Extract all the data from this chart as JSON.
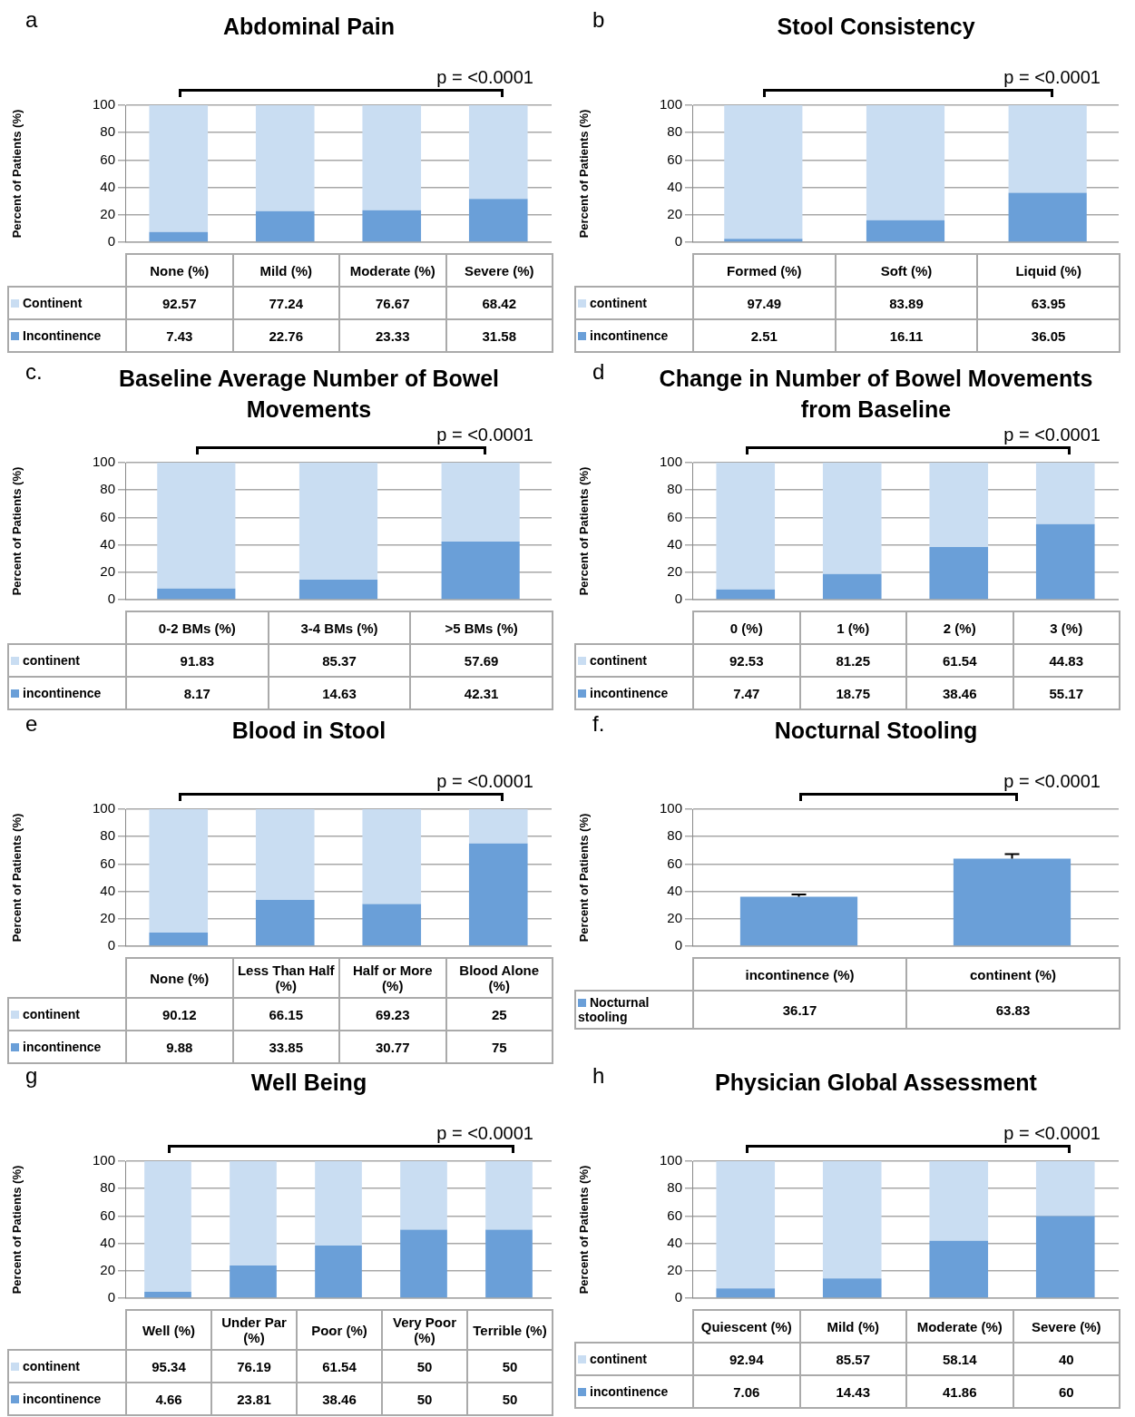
{
  "chart_data": [
    {
      "type": "bar",
      "stacked": true,
      "title": "Abdominal Pain",
      "ylabel": "Percent of Patients (%)",
      "annotations": [
        "a",
        "p = <0.0001"
      ],
      "categories": [
        "None (%)",
        "Mild (%)",
        "Moderate (%)",
        "Severe (%)"
      ],
      "series": [
        {
          "name": "Incontinence",
          "color": "#6a9fd8",
          "values": [
            7.43,
            22.76,
            23.33,
            31.58
          ]
        },
        {
          "name": "Continent",
          "color": "#c9ddf2",
          "values": [
            92.57,
            77.24,
            76.67,
            68.42
          ]
        }
      ],
      "ylim": [
        0,
        100
      ],
      "yticks": [
        0,
        20,
        40,
        60,
        80,
        100
      ],
      "grid": "y",
      "legend": "bottom",
      "tick_labels": "y",
      "data_labels": true
    },
    {
      "type": "bar",
      "stacked": true,
      "title": "Stool Consistency",
      "ylabel": "Percent of Patients (%)",
      "annotations": [
        "b",
        "p = <0.0001"
      ],
      "categories": [
        "Formed (%)",
        "Soft (%)",
        "Liquid (%)"
      ],
      "series": [
        {
          "name": "incontinence",
          "color": "#6a9fd8",
          "values": [
            2.51,
            16.11,
            36.05
          ]
        },
        {
          "name": "continent",
          "color": "#c9ddf2",
          "values": [
            97.49,
            83.89,
            63.95
          ]
        }
      ],
      "ylim": [
        0,
        100
      ],
      "yticks": [
        0,
        20,
        40,
        60,
        80,
        100
      ],
      "grid": "y",
      "legend": "bottom",
      "tick_labels": "y",
      "data_labels": true
    },
    {
      "type": "bar",
      "stacked": true,
      "title": "Baseline Average Number of Bowel Movements",
      "ylabel": "Percent of Patients (%)",
      "annotations": [
        "c.",
        "p = <0.0001"
      ],
      "categories": [
        "0-2 BMs (%)",
        "3-4 BMs (%)",
        ">5 BMs (%)"
      ],
      "series": [
        {
          "name": "incontinence",
          "color": "#6a9fd8",
          "values": [
            8.17,
            14.63,
            42.31
          ]
        },
        {
          "name": "continent",
          "color": "#c9ddf2",
          "values": [
            91.83,
            85.37,
            57.69
          ]
        }
      ],
      "ylim": [
        0,
        100
      ],
      "yticks": [
        0,
        20,
        40,
        60,
        80,
        100
      ],
      "grid": "y",
      "legend": "bottom",
      "tick_labels": "y",
      "data_labels": true
    },
    {
      "type": "bar",
      "stacked": true,
      "title": "Change in Number of Bowel Movements from Baseline",
      "ylabel": "Percent of Patients (%)",
      "annotations": [
        "d",
        "p = <0.0001"
      ],
      "categories": [
        "0 (%)",
        "1 (%)",
        "2 (%)",
        "3 (%)"
      ],
      "series": [
        {
          "name": "incontinence",
          "color": "#6a9fd8",
          "values": [
            7.47,
            18.75,
            38.46,
            55.17
          ]
        },
        {
          "name": "continent",
          "color": "#c9ddf2",
          "values": [
            92.53,
            81.25,
            61.54,
            44.83
          ]
        }
      ],
      "ylim": [
        0,
        100
      ],
      "yticks": [
        0,
        20,
        40,
        60,
        80,
        100
      ],
      "grid": "y",
      "legend": "bottom",
      "tick_labels": "y",
      "data_labels": true
    },
    {
      "type": "bar",
      "stacked": true,
      "title": "Blood in Stool",
      "ylabel": "Percent of Patients (%)",
      "annotations": [
        "e",
        "p = <0.0001"
      ],
      "categories": [
        "None (%)",
        "Less Than Half (%)",
        "Half or More (%)",
        "Blood Alone (%)"
      ],
      "series": [
        {
          "name": "incontinence",
          "color": "#6a9fd8",
          "values": [
            9.88,
            33.85,
            30.77,
            75
          ]
        },
        {
          "name": "continent",
          "color": "#c9ddf2",
          "values": [
            90.12,
            66.15,
            69.23,
            25
          ]
        }
      ],
      "ylim": [
        0,
        100
      ],
      "yticks": [
        0,
        20,
        40,
        60,
        80,
        100
      ],
      "grid": "y",
      "legend": "bottom",
      "tick_labels": "y",
      "data_labels": true
    },
    {
      "type": "bar",
      "title": "Nocturnal Stooling",
      "ylabel": "Percent of Patients (%)",
      "annotations": [
        "f.",
        "p = <0.0001"
      ],
      "categories": [
        "incontinence (%)",
        "continent (%)"
      ],
      "series": [
        {
          "name": "Nocturnal stooling",
          "color": "#6a9fd8",
          "values": [
            36.17,
            63.83
          ],
          "errors": [
            [
              36.17,
              37.7
            ],
            [
              63.83,
              67.2
            ]
          ]
        }
      ],
      "ylim": [
        0,
        100
      ],
      "yticks": [
        0,
        20,
        40,
        60,
        80,
        100
      ],
      "grid": "y",
      "legend": "bottom",
      "tick_labels": "y",
      "data_labels": true
    },
    {
      "type": "bar",
      "stacked": true,
      "title": "Well Being",
      "ylabel": "Percent of Patients (%)",
      "annotations": [
        "g",
        "p = <0.0001"
      ],
      "categories": [
        "Well (%)",
        "Under Par (%)",
        "Poor (%)",
        "Very Poor (%)",
        "Terrible (%)"
      ],
      "series": [
        {
          "name": "incontinence",
          "color": "#6a9fd8",
          "values": [
            4.66,
            23.81,
            38.46,
            50,
            50
          ]
        },
        {
          "name": "continent",
          "color": "#c9ddf2",
          "values": [
            95.34,
            76.19,
            61.54,
            50,
            50
          ]
        }
      ],
      "ylim": [
        0,
        100
      ],
      "yticks": [
        0,
        20,
        40,
        60,
        80,
        100
      ],
      "grid": "y",
      "legend": "bottom",
      "tick_labels": "y",
      "data_labels": true
    },
    {
      "type": "bar",
      "stacked": true,
      "title": "Physician Global Assessment",
      "ylabel": "Percent of Patients (%)",
      "annotations": [
        "h",
        "p = <0.0001"
      ],
      "categories": [
        "Quiescent (%)",
        "Mild (%)",
        "Moderate (%)",
        "Severe (%)"
      ],
      "series": [
        {
          "name": "incontinence",
          "color": "#6a9fd8",
          "values": [
            7.06,
            14.43,
            41.86,
            60
          ]
        },
        {
          "name": "continent",
          "color": "#c9ddf2",
          "values": [
            92.94,
            85.57,
            58.14,
            40
          ]
        }
      ],
      "ylim": [
        0,
        100
      ],
      "yticks": [
        0,
        20,
        40,
        60,
        80,
        100
      ],
      "grid": "y",
      "legend": "bottom",
      "tick_labels": "y",
      "data_labels": true
    }
  ]
}
